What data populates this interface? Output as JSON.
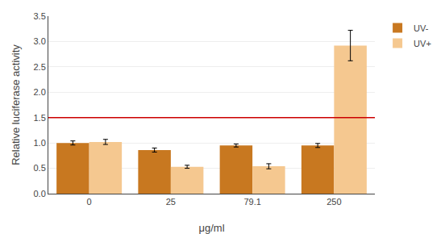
{
  "chart_data": {
    "type": "bar",
    "categories": [
      "0",
      "25",
      "79.1",
      "250"
    ],
    "series": [
      {
        "name": "UV-",
        "color": "#C87820",
        "values": [
          1.0,
          0.86,
          0.95,
          0.95
        ],
        "errors": [
          0.04,
          0.04,
          0.03,
          0.04
        ]
      },
      {
        "name": "UV+",
        "color": "#F5C890",
        "values": [
          1.02,
          0.53,
          0.54,
          2.92
        ],
        "errors": [
          0.05,
          0.03,
          0.05,
          0.3
        ]
      }
    ],
    "xlabel": "μg/ml",
    "ylabel": "Relative luciferase activity",
    "ylim": [
      0,
      3.5
    ],
    "yticks": [
      {
        "value": 0.0,
        "label": "0.0"
      },
      0.5,
      {
        "value": 1.0,
        "label": "1.0"
      },
      1.5,
      {
        "value": 2.0,
        "label": "2.0"
      },
      2.5,
      {
        "value": 3.0,
        "label": "3.0"
      },
      3.5
    ],
    "reference_line": {
      "y": 1.5,
      "color": "#CC0000"
    },
    "grid": true,
    "legend": "upper right"
  }
}
